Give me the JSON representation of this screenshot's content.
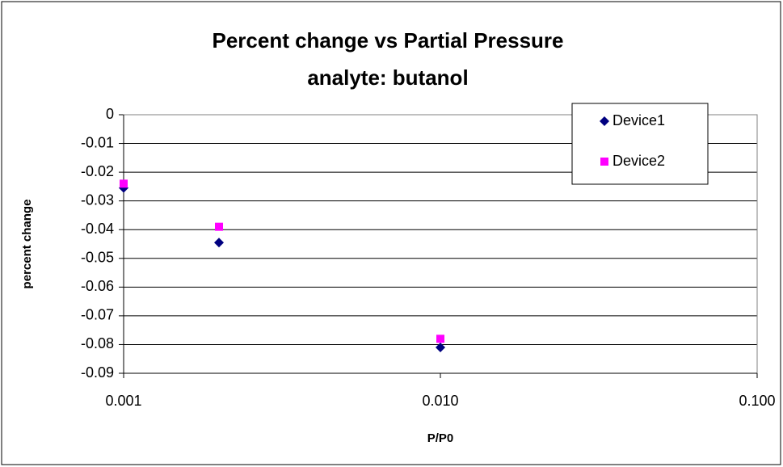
{
  "chart_data": {
    "type": "scatter",
    "title": "Percent change vs Partial Pressure",
    "subtitle": "analyte: butanol",
    "x_label": "P/P0",
    "y_label": "percent change",
    "x_scale": "log",
    "xlim": [
      0.001,
      0.1
    ],
    "xticks": [
      0.001,
      {
        "value": 0.01,
        "label": "0.010"
      },
      {
        "value": 0.1,
        "label": "0.100"
      }
    ],
    "ylim": [
      -0.09,
      0
    ],
    "yticks": [
      0,
      -0.01,
      -0.02,
      -0.03,
      -0.04,
      -0.05,
      -0.06,
      -0.07,
      -0.08,
      -0.09
    ],
    "grid": true,
    "legend": "top-right",
    "series": [
      {
        "name": "Device1",
        "color": "#000080",
        "marker": "diamond",
        "x": [
          0.001,
          0.002,
          0.01
        ],
        "values": [
          -0.0255,
          -0.0445,
          -0.081
        ]
      },
      {
        "name": "Device2",
        "color": "#ff00ff",
        "marker": "square",
        "x": [
          0.001,
          0.002,
          0.01
        ],
        "values": [
          -0.024,
          -0.039,
          -0.078
        ]
      }
    ]
  }
}
